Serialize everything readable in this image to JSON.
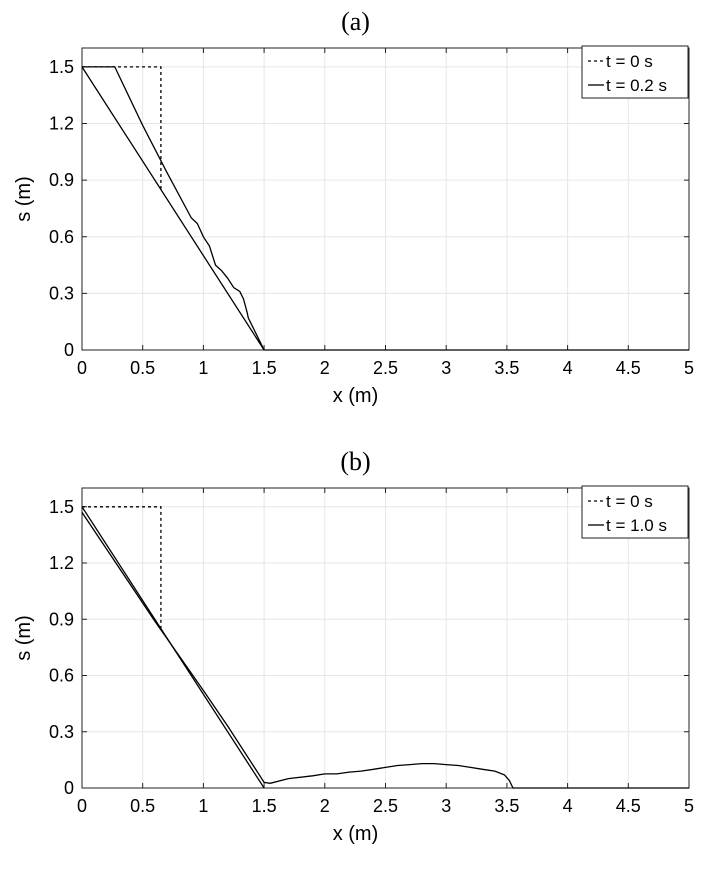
{
  "chart_data": [
    {
      "type": "line",
      "title": "(a)",
      "xlabel": "x (m)",
      "ylabel": "s (m)",
      "xlim": [
        0,
        5
      ],
      "ylim": [
        0,
        1.6
      ],
      "xticks": [
        0,
        0.5,
        1,
        1.5,
        2,
        2.5,
        3,
        3.5,
        4,
        4.5,
        5
      ],
      "xtick_labels": [
        "0",
        "0.5",
        "1",
        "1.5",
        "2",
        "2.5",
        "3",
        "3.5",
        "4",
        "4.5",
        "5"
      ],
      "yticks": [
        0,
        0.3,
        0.6,
        0.9,
        1.2,
        1.5
      ],
      "ytick_labels": [
        "0",
        "0.3",
        "0.6",
        "0.9",
        "1.2",
        "1.5"
      ],
      "grid": true,
      "legend_position": "top-right",
      "background_lines": [
        {
          "points": [
            [
              0,
              1.5
            ],
            [
              1.5,
              0
            ]
          ]
        }
      ],
      "series": [
        {
          "name": "t = 0 s",
          "style": "dotted",
          "points": [
            [
              0,
              1.5
            ],
            [
              0.65,
              1.5
            ],
            [
              0.65,
              0.85
            ]
          ]
        },
        {
          "name": "t = 0.2 s",
          "style": "solid",
          "points": [
            [
              0,
              1.5
            ],
            [
              0.27,
              1.5
            ],
            [
              0.5,
              1.19
            ],
            [
              0.7,
              0.94
            ],
            [
              0.9,
              0.7
            ],
            [
              0.95,
              0.67
            ],
            [
              1.0,
              0.6
            ],
            [
              1.05,
              0.55
            ],
            [
              1.1,
              0.45
            ],
            [
              1.15,
              0.42
            ],
            [
              1.2,
              0.38
            ],
            [
              1.25,
              0.33
            ],
            [
              1.3,
              0.31
            ],
            [
              1.33,
              0.27
            ],
            [
              1.36,
              0.2
            ],
            [
              1.37,
              0.17
            ],
            [
              1.5,
              0
            ],
            [
              5,
              0
            ]
          ]
        }
      ]
    },
    {
      "type": "line",
      "title": "(b)",
      "xlabel": "x (m)",
      "ylabel": "s (m)",
      "xlim": [
        0,
        5
      ],
      "ylim": [
        0,
        1.6
      ],
      "xticks": [
        0,
        0.5,
        1,
        1.5,
        2,
        2.5,
        3,
        3.5,
        4,
        4.5,
        5
      ],
      "xtick_labels": [
        "0",
        "0.5",
        "1",
        "1.5",
        "2",
        "2.5",
        "3",
        "3.5",
        "4",
        "4.5",
        "5"
      ],
      "yticks": [
        0,
        0.3,
        0.6,
        0.9,
        1.2,
        1.5
      ],
      "ytick_labels": [
        "0",
        "0.3",
        "0.6",
        "0.9",
        "1.2",
        "1.5"
      ],
      "grid": true,
      "legend_position": "top-right",
      "background_lines": [
        {
          "points": [
            [
              0,
              1.5
            ],
            [
              1.5,
              0
            ]
          ]
        }
      ],
      "series": [
        {
          "name": "t = 0 s",
          "style": "dotted",
          "points": [
            [
              0,
              1.5
            ],
            [
              0.65,
              1.5
            ],
            [
              0.65,
              0.85
            ]
          ]
        },
        {
          "name": "t = 1.0 s",
          "style": "solid",
          "points": [
            [
              0,
              1.47
            ],
            [
              0.6,
              0.89
            ],
            [
              1.0,
              0.52
            ],
            [
              1.2,
              0.33
            ],
            [
              1.4,
              0.13
            ],
            [
              1.5,
              0.03
            ],
            [
              1.55,
              0.025
            ],
            [
              1.7,
              0.05
            ],
            [
              1.9,
              0.065
            ],
            [
              2.0,
              0.075
            ],
            [
              2.1,
              0.075
            ],
            [
              2.2,
              0.085
            ],
            [
              2.3,
              0.09
            ],
            [
              2.4,
              0.1
            ],
            [
              2.5,
              0.11
            ],
            [
              2.6,
              0.12
            ],
            [
              2.7,
              0.125
            ],
            [
              2.8,
              0.13
            ],
            [
              2.9,
              0.13
            ],
            [
              3.0,
              0.125
            ],
            [
              3.1,
              0.12
            ],
            [
              3.2,
              0.11
            ],
            [
              3.3,
              0.1
            ],
            [
              3.4,
              0.09
            ],
            [
              3.48,
              0.07
            ],
            [
              3.52,
              0.04
            ],
            [
              3.55,
              0
            ],
            [
              5,
              0
            ]
          ]
        }
      ]
    }
  ]
}
